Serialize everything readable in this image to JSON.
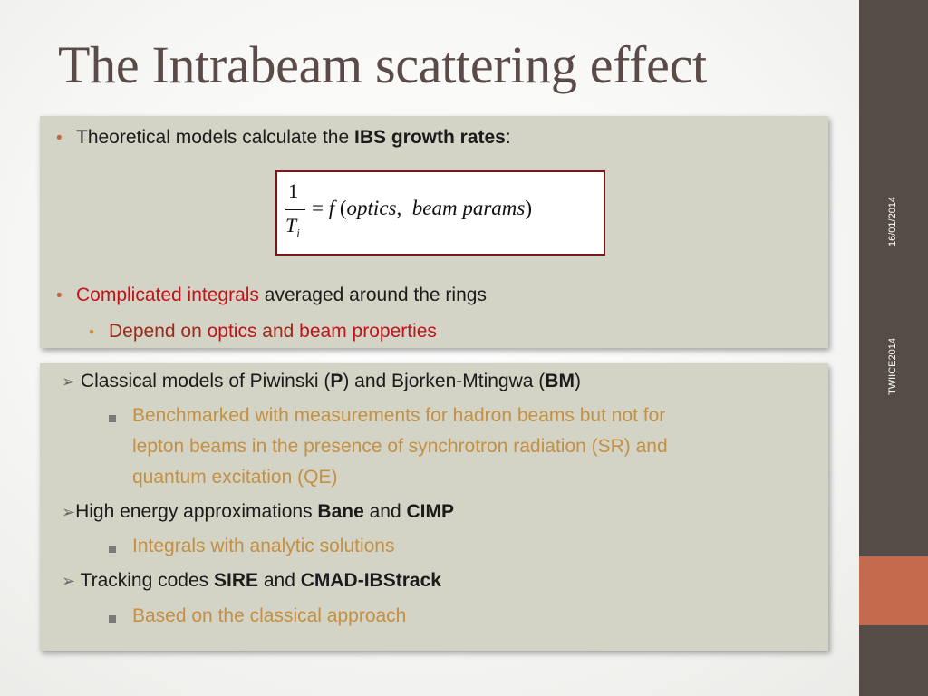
{
  "slide": {
    "title": "The Intrabeam scattering effect"
  },
  "sidebar": {
    "date": "16/01/2014",
    "conference": "TWIICE2014"
  },
  "panel1": {
    "bullet1": {
      "prefix": "Theoretical models calculate the ",
      "bold": "IBS growth rates",
      "suffix": ":"
    },
    "formula": {
      "numerator": "1",
      "denominator": "T",
      "denominator_sub": "i",
      "equals": "= ",
      "function": "f",
      "open": "(",
      "arg1": "optics,",
      "arg2": "beam params",
      "close": ")"
    },
    "bullet2": {
      "highlight": "Complicated integrals",
      "rest": " averaged around the rings"
    },
    "bullet2_sub": {
      "prefix": "Depend on ",
      "word1": "optics",
      "mid": " and ",
      "word2": "beam properties"
    }
  },
  "panel2": {
    "item1": {
      "prefix": " Classical models of Piwinski (",
      "b1": "P",
      "mid": ") and Bjorken-Mtingwa (",
      "b2": "BM",
      "suffix": ")"
    },
    "item1_sub": {
      "line1": "Benchmarked with measurements for hadron beams but not for",
      "line2": "lepton beams in the presence of synchrotron radiation (SR) and",
      "line3": "quantum excitation (QE)"
    },
    "item2": {
      "prefix": "High energy approximations ",
      "b1": "Bane",
      "mid": " and ",
      "b2": "CIMP"
    },
    "item2_sub": "Integrals with analytic solutions",
    "item3": {
      "prefix": " Tracking codes ",
      "b1": "SIRE",
      "mid": " and ",
      "b2": "CMAD-IBStrack"
    },
    "item3_sub": "Based on the classical approach"
  }
}
